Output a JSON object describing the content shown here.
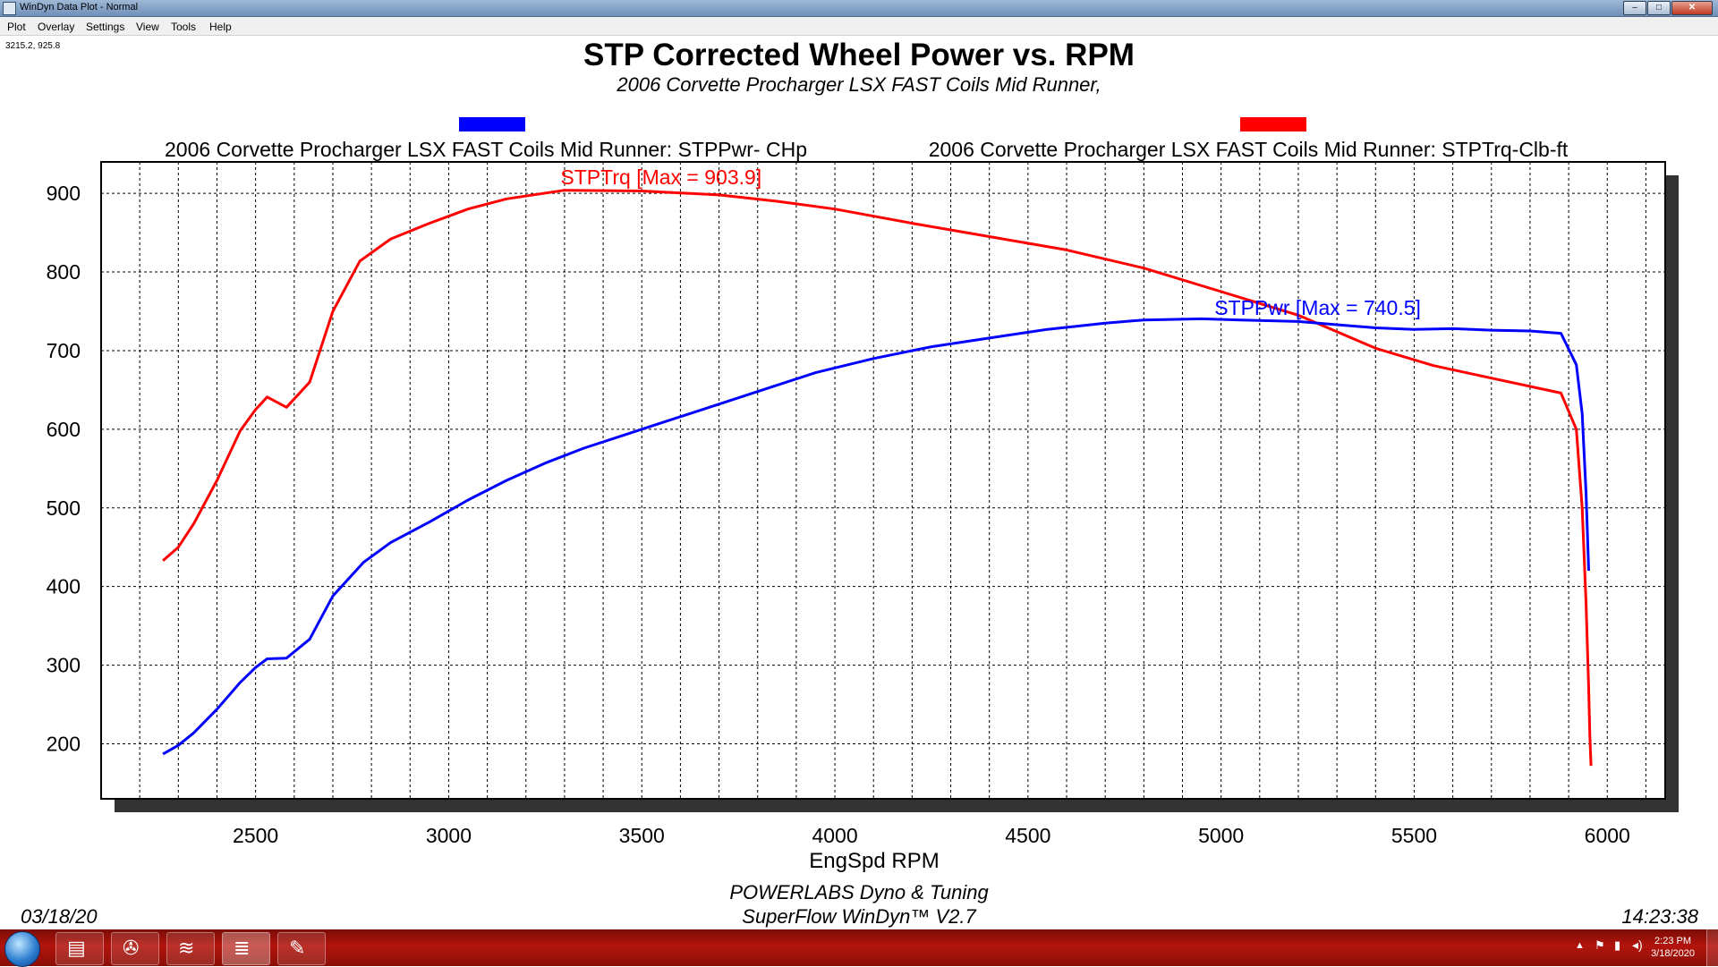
{
  "window": {
    "title": "WinDyn Data Plot - Normal",
    "controls": [
      "–",
      "□",
      "✕"
    ]
  },
  "menu": [
    "Plot",
    "Overlay",
    "Settings",
    "View",
    "Tools",
    "Help"
  ],
  "cursor_readout": "3215.2, 925.8",
  "chart_data": {
    "type": "line",
    "title": "STP Corrected Wheel Power vs. RPM",
    "subtitle": "2006 Corvette Procharger LSX FAST Coils Mid Runner,",
    "xlabel": "EngSpd  RPM",
    "ylabel": "",
    "xlim": [
      2100,
      6150
    ],
    "ylim": [
      130,
      940
    ],
    "x_ticks": [
      2500,
      3000,
      3500,
      4000,
      4500,
      5000,
      5500,
      6000
    ],
    "y_ticks": [
      200,
      300,
      400,
      500,
      600,
      700,
      800,
      900
    ],
    "grid": true,
    "legend_position": "top",
    "series": [
      {
        "name": "2006 Corvette Procharger LSX FAST Coils Mid Runner: STPPwr- CHp",
        "color": "#0000ff",
        "annotation": "STPPwr [Max = 740.5]",
        "x": [
          2260,
          2300,
          2340,
          2400,
          2460,
          2500,
          2530,
          2580,
          2640,
          2700,
          2780,
          2850,
          2950,
          3050,
          3150,
          3250,
          3350,
          3450,
          3550,
          3650,
          3800,
          3950,
          4100,
          4250,
          4400,
          4550,
          4700,
          4800,
          4950,
          5050,
          5200,
          5300,
          5400,
          5500,
          5600,
          5700,
          5800,
          5880,
          5920,
          5935,
          5945,
          5952
        ],
        "y": [
          187,
          198,
          214,
          244,
          278,
          297,
          308,
          309,
          333,
          388,
          431,
          456,
          482,
          510,
          535,
          557,
          576,
          592,
          608,
          624,
          648,
          672,
          690,
          705,
          716,
          727,
          735,
          739,
          740.5,
          739,
          737,
          733,
          729,
          727,
          728,
          726,
          725,
          722,
          682,
          620,
          520,
          420
        ]
      },
      {
        "name": "2006 Corvette Procharger LSX FAST Coils Mid Runner: STPTrq-Clb-ft",
        "color": "#ff0000",
        "annotation": "STPTrq [Max = 903.9]",
        "x": [
          2260,
          2300,
          2340,
          2400,
          2460,
          2500,
          2530,
          2580,
          2640,
          2700,
          2770,
          2850,
          2950,
          3050,
          3150,
          3300,
          3500,
          3700,
          3850,
          4000,
          4200,
          4400,
          4600,
          4800,
          5000,
          5200,
          5400,
          5550,
          5700,
          5880,
          5920,
          5935,
          5945,
          5952,
          5955,
          5958
        ],
        "y": [
          433,
          450,
          480,
          535,
          598,
          625,
          641,
          628,
          660,
          750,
          814,
          842,
          862,
          880,
          893,
          903.9,
          903,
          898,
          890,
          880,
          862,
          845,
          828,
          805,
          775,
          745,
          703,
          681,
          665,
          646,
          600,
          500,
          380,
          270,
          210,
          172
        ]
      }
    ]
  },
  "footer": {
    "date": "03/18/20",
    "time": "14:23:38",
    "shop": "POWERLABS Dyno & Tuning",
    "software": "SuperFlow WinDyn™ V2.7"
  },
  "taskbar": {
    "apps": [
      "folder-icon",
      "satellite-icon",
      "windyn-icon",
      "windyn-plot-icon",
      "paint-icon"
    ],
    "clock_time": "2:23 PM",
    "clock_date": "3/18/2020"
  }
}
